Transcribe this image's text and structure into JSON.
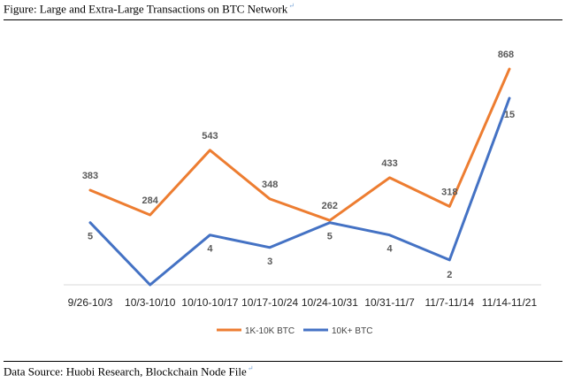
{
  "figure": {
    "title": "Figure: Large and Extra-Large Transactions on BTC Network",
    "source": "Data Source: Huobi Research, Blockchain Node File",
    "para_mark": "↵"
  },
  "chart_data": {
    "type": "line",
    "title": "",
    "xlabel": "",
    "ylabel": "",
    "categories": [
      "9/26-10/3",
      "10/3-10/10",
      "10/10-10/17",
      "10/17-10/24",
      "10/24-10/31",
      "10/31-11/7",
      "11/7-11/14",
      "11/14-11/21"
    ],
    "series": [
      {
        "name": "1K-10K BTC",
        "color": "#ed7d31",
        "values": [
          383,
          284,
          543,
          348,
          262,
          433,
          318,
          868
        ],
        "labels": [
          "383",
          "284",
          "543",
          "348",
          "262",
          "433",
          "318",
          "868"
        ]
      },
      {
        "name": "10K+ BTC",
        "color": "#4472c4",
        "values": [
          5,
          0,
          4,
          3,
          5,
          4,
          2,
          15
        ],
        "labels": [
          "5",
          "",
          "4",
          "3",
          "5",
          "4",
          "2",
          "15"
        ]
      }
    ],
    "grid": false,
    "legend_position": "bottom"
  }
}
